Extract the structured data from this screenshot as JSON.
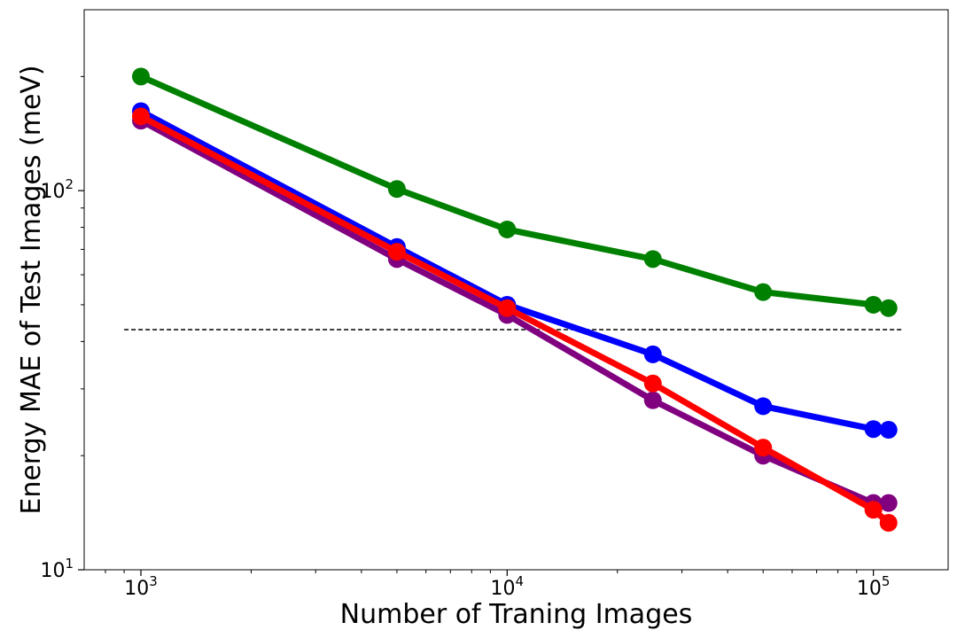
{
  "chart_data": {
    "type": "line",
    "title": "",
    "xlabel": "Number of Traning Images",
    "ylabel": "Energy MAE of Test Images (meV)",
    "x_scale": "log",
    "y_scale": "log",
    "xlim": [
      700,
      160000
    ],
    "ylim": [
      10,
      300
    ],
    "x_ticks": [
      {
        "value": 1000,
        "base": "10",
        "exp": "3"
      },
      {
        "value": 10000,
        "base": "10",
        "exp": "4"
      },
      {
        "value": 100000,
        "base": "10",
        "exp": "5"
      }
    ],
    "y_ticks": [
      {
        "value": 10,
        "base": "10",
        "exp": "1"
      },
      {
        "value": 100,
        "base": "10",
        "exp": "2"
      }
    ],
    "grid": false,
    "legend": "none",
    "reference_line": {
      "y": 43,
      "x_range": [
        900,
        120000
      ],
      "style": "dashed",
      "color": "#000000"
    },
    "series": [
      {
        "color": "#008000",
        "x": [
          1000,
          5000,
          10000,
          25000,
          50000,
          100000,
          110000
        ],
        "y": [
          200,
          101,
          79,
          66,
          54,
          50,
          49
        ]
      },
      {
        "color": "#0000ff",
        "x": [
          1000,
          5000,
          10000,
          25000,
          50000,
          100000,
          110000
        ],
        "y": [
          162,
          71,
          50,
          37,
          27,
          23.5,
          23.4
        ]
      },
      {
        "color": "#800080",
        "x": [
          1000,
          5000,
          10000,
          25000,
          50000,
          100000,
          110000
        ],
        "y": [
          153,
          66,
          47,
          28,
          20,
          15,
          15
        ]
      },
      {
        "color": "#ff0000",
        "x": [
          1000,
          5000,
          10000,
          25000,
          50000,
          100000,
          110000
        ],
        "y": [
          157,
          69,
          49,
          31,
          21,
          14.4,
          13.3
        ]
      }
    ]
  }
}
